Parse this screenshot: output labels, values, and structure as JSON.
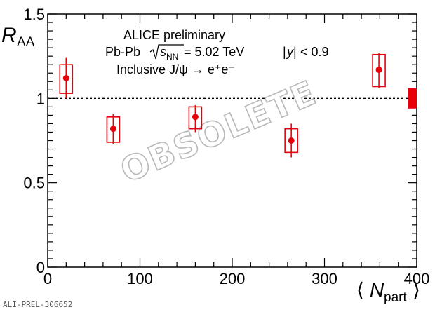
{
  "chart_data": {
    "type": "scatter",
    "xlabel_symbol": "N",
    "xlabel_subscript": "part",
    "ylabel_symbol": "R",
    "ylabel_subscript": "AA",
    "xlim": [
      0,
      400
    ],
    "ylim": [
      0,
      1.5
    ],
    "x_ticks": [
      "0",
      "100",
      "200",
      "300",
      "400"
    ],
    "y_ticks": [
      "0",
      "0.5",
      "1",
      "1.5"
    ],
    "reference_line": 1,
    "grid": false,
    "color": "#e8000b",
    "points": [
      {
        "x": 20,
        "y": 1.12,
        "stat_low": 1.0,
        "stat_high": 1.24,
        "sys_low": 1.03,
        "sys_high": 1.2
      },
      {
        "x": 71,
        "y": 0.82,
        "stat_low": 0.73,
        "stat_high": 0.91,
        "sys_low": 0.74,
        "sys_high": 0.89
      },
      {
        "x": 160,
        "y": 0.89,
        "stat_low": 0.8,
        "stat_high": 0.96,
        "sys_low": 0.82,
        "sys_high": 0.95
      },
      {
        "x": 264,
        "y": 0.75,
        "stat_low": 0.65,
        "stat_high": 0.85,
        "sys_low": 0.68,
        "sys_high": 0.82
      },
      {
        "x": 359,
        "y": 1.17,
        "stat_low": 1.06,
        "stat_high": 1.27,
        "sys_low": 1.07,
        "sys_high": 1.26
      }
    ],
    "global_uncertainty": {
      "low": 0.94,
      "high": 1.06
    }
  },
  "annotations": {
    "experiment": "ALICE preliminary",
    "system_prefix": "Pb-Pb",
    "energy": "= 5.02 TeV",
    "rapidity": "< 0.9",
    "process": "Inclusive J/ψ → e⁺e⁻",
    "watermark": "OBSOLETE"
  },
  "figure_id": "ALI-PREL-306652"
}
